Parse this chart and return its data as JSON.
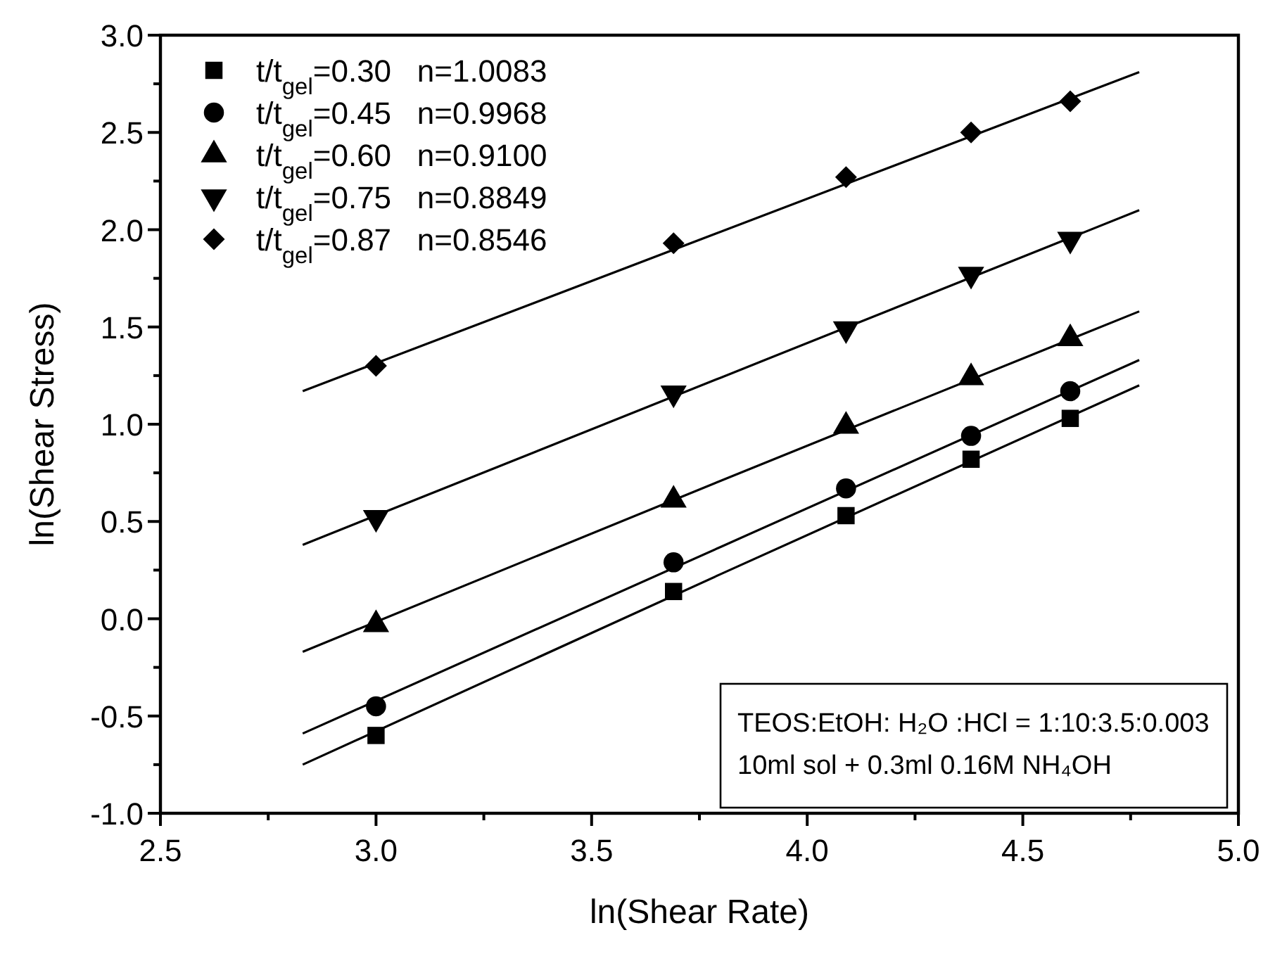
{
  "chart_data": {
    "type": "scatter",
    "xlabel": "ln(Shear Rate)",
    "ylabel": "ln(Shear Stress)",
    "xlim": [
      2.5,
      5.0
    ],
    "ylim": [
      -1.0,
      3.0
    ],
    "xticks": [
      2.5,
      {
        "value": 2.75,
        "label": null
      },
      {
        "value": 3,
        "label": "3.0"
      },
      {
        "value": 3.25,
        "label": null
      },
      3.5,
      {
        "value": 3.75,
        "label": null
      },
      {
        "value": 4,
        "label": "4.0"
      },
      {
        "value": 4.25,
        "label": null
      },
      4.5,
      {
        "value": 4.75,
        "label": null
      },
      {
        "value": 5,
        "label": "5.0"
      }
    ],
    "yticks": [
      {
        "value": -1,
        "label": "-1.0"
      },
      {
        "value": -0.75,
        "label": null
      },
      -0.5,
      {
        "value": -0.25,
        "label": null
      },
      {
        "value": 0,
        "label": "0.0"
      },
      {
        "value": 0.25,
        "label": null
      },
      0.5,
      {
        "value": 0.75,
        "label": null
      },
      {
        "value": 1,
        "label": "1.0"
      },
      {
        "value": 1.25,
        "label": null
      },
      1.5,
      {
        "value": 1.75,
        "label": null
      },
      {
        "value": 2,
        "label": "2.0"
      },
      {
        "value": 2.25,
        "label": null
      },
      2.5,
      {
        "value": 2.75,
        "label": null
      },
      {
        "value": 3,
        "label": "3.0"
      }
    ],
    "x": [
      3.0,
      3.69,
      4.09,
      4.38,
      4.61
    ],
    "legend": "top left",
    "grid": false,
    "series": [
      {
        "name": "t/t$_{gel}$=0.30   n=1.0083",
        "color": "#000000",
        "marker": "square",
        "values": [
          -0.6,
          0.14,
          0.53,
          0.82,
          1.03
        ]
      },
      {
        "name": "t/t$_{gel}$=0.45   n=0.9968",
        "color": "#000000",
        "marker": "circle",
        "values": [
          -0.45,
          0.29,
          0.67,
          0.94,
          1.17
        ]
      },
      {
        "name": "t/t$_{gel}$=0.60   n=0.9100",
        "color": "#000000",
        "marker": "triangle",
        "values": [
          -0.03,
          0.61,
          0.99,
          1.24,
          1.44
        ]
      },
      {
        "name": "t/t$_{gel}$=0.75   n=0.8849",
        "color": "#000000",
        "marker": "triangle-down",
        "values": [
          0.52,
          1.16,
          1.49,
          1.77,
          1.95
        ]
      },
      {
        "name": "t/t$_{gel}$=0.87   n=0.8546",
        "color": "#000000",
        "marker": "diamond",
        "values": [
          1.3,
          1.93,
          2.27,
          2.5,
          2.66
        ]
      },
      {
        "type": "line",
        "color": "#000000",
        "marker": "none",
        "x": [
          2.83,
          3.8,
          4.77
        ],
        "values": [
          -0.75,
          0.23,
          1.2
        ]
      },
      {
        "type": "line",
        "color": "#000000",
        "marker": "none",
        "x": [
          2.83,
          3.8,
          4.77
        ],
        "values": [
          -0.59,
          0.37,
          1.33
        ]
      },
      {
        "type": "line",
        "color": "#000000",
        "marker": "none",
        "x": [
          2.83,
          3.8,
          4.77
        ],
        "values": [
          -0.17,
          0.71,
          1.58
        ]
      },
      {
        "type": "line",
        "color": "#000000",
        "marker": "none",
        "x": [
          2.83,
          3.8,
          4.77
        ],
        "values": [
          0.38,
          1.24,
          2.1
        ]
      },
      {
        "type": "line",
        "color": "#000000",
        "marker": "none",
        "x": [
          2.83,
          3.8,
          4.77
        ],
        "values": [
          1.17,
          1.99,
          2.81
        ]
      }
    ],
    "annotations": [
      "TEOS:EtOH: H₂O :HCl = 1:10:3.5:0.003",
      "10ml sol + 0.3ml 0.16M NH₄OH"
    ]
  }
}
